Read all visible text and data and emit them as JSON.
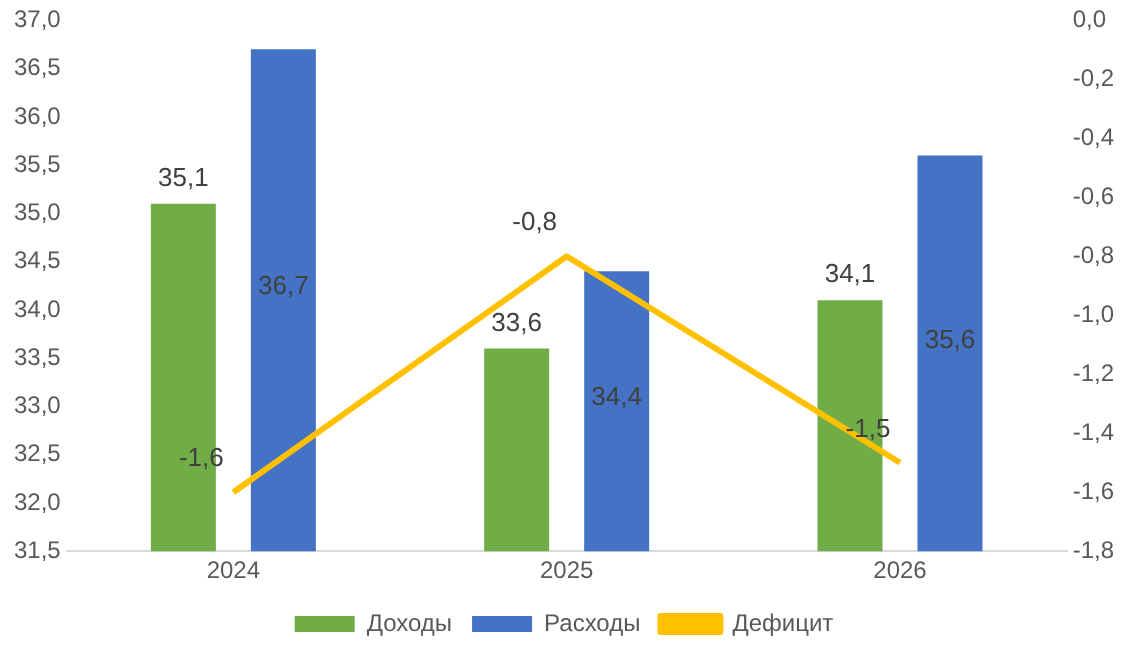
{
  "chart_data": {
    "type": "bar",
    "categories": [
      "2024",
      "2025",
      "2026"
    ],
    "series": [
      {
        "name": "Доходы",
        "color": "#70ad47",
        "values": [
          35.1,
          33.6,
          34.1
        ],
        "value_labels": [
          "35,1",
          "33,6",
          "34,1"
        ]
      },
      {
        "name": "Расходы",
        "color": "#4472c4",
        "values": [
          36.7,
          34.4,
          35.6
        ],
        "value_labels": [
          "36,7",
          "34,4",
          "35,6"
        ]
      },
      {
        "name": "Дефицит",
        "type": "line",
        "axis": "y2",
        "color": "#ffc000",
        "values": [
          -1.6,
          -0.8,
          -1.5
        ],
        "value_labels": [
          "-1,6",
          "-0,8",
          "-1,5"
        ]
      }
    ],
    "ylim": [
      31.5,
      37.0
    ],
    "yticks": [
      {
        "value": 31.5,
        "label": "31,5"
      },
      {
        "value": 32.0,
        "label": "32,0"
      },
      {
        "value": 32.5,
        "label": "32,5"
      },
      {
        "value": 33.0,
        "label": "33,0"
      },
      {
        "value": 33.5,
        "label": "33,5"
      },
      {
        "value": 34.0,
        "label": "34,0"
      },
      {
        "value": 34.5,
        "label": "34,5"
      },
      {
        "value": 35.0,
        "label": "35,0"
      },
      {
        "value": 35.5,
        "label": "35,5"
      },
      {
        "value": 36.0,
        "label": "36,0"
      },
      {
        "value": 36.5,
        "label": "36,5"
      },
      {
        "value": 37.0,
        "label": "37,0"
      }
    ],
    "y2lim": [
      -1.8,
      0.0
    ],
    "y2ticks": [
      {
        "value": -1.8,
        "label": "-1,8"
      },
      {
        "value": -1.6,
        "label": "-1,6"
      },
      {
        "value": -1.4,
        "label": "-1,4"
      },
      {
        "value": -1.2,
        "label": "-1,2"
      },
      {
        "value": -1.0,
        "label": "-1,0"
      },
      {
        "value": -0.8,
        "label": "-0,8"
      },
      {
        "value": -0.6,
        "label": "-0,6"
      },
      {
        "value": -0.4,
        "label": "-0,4"
      },
      {
        "value": -0.2,
        "label": "-0,2"
      },
      {
        "value": 0.0,
        "label": "0,0"
      }
    ],
    "legend": "bottom",
    "marker": "none",
    "line_style": "solid"
  }
}
